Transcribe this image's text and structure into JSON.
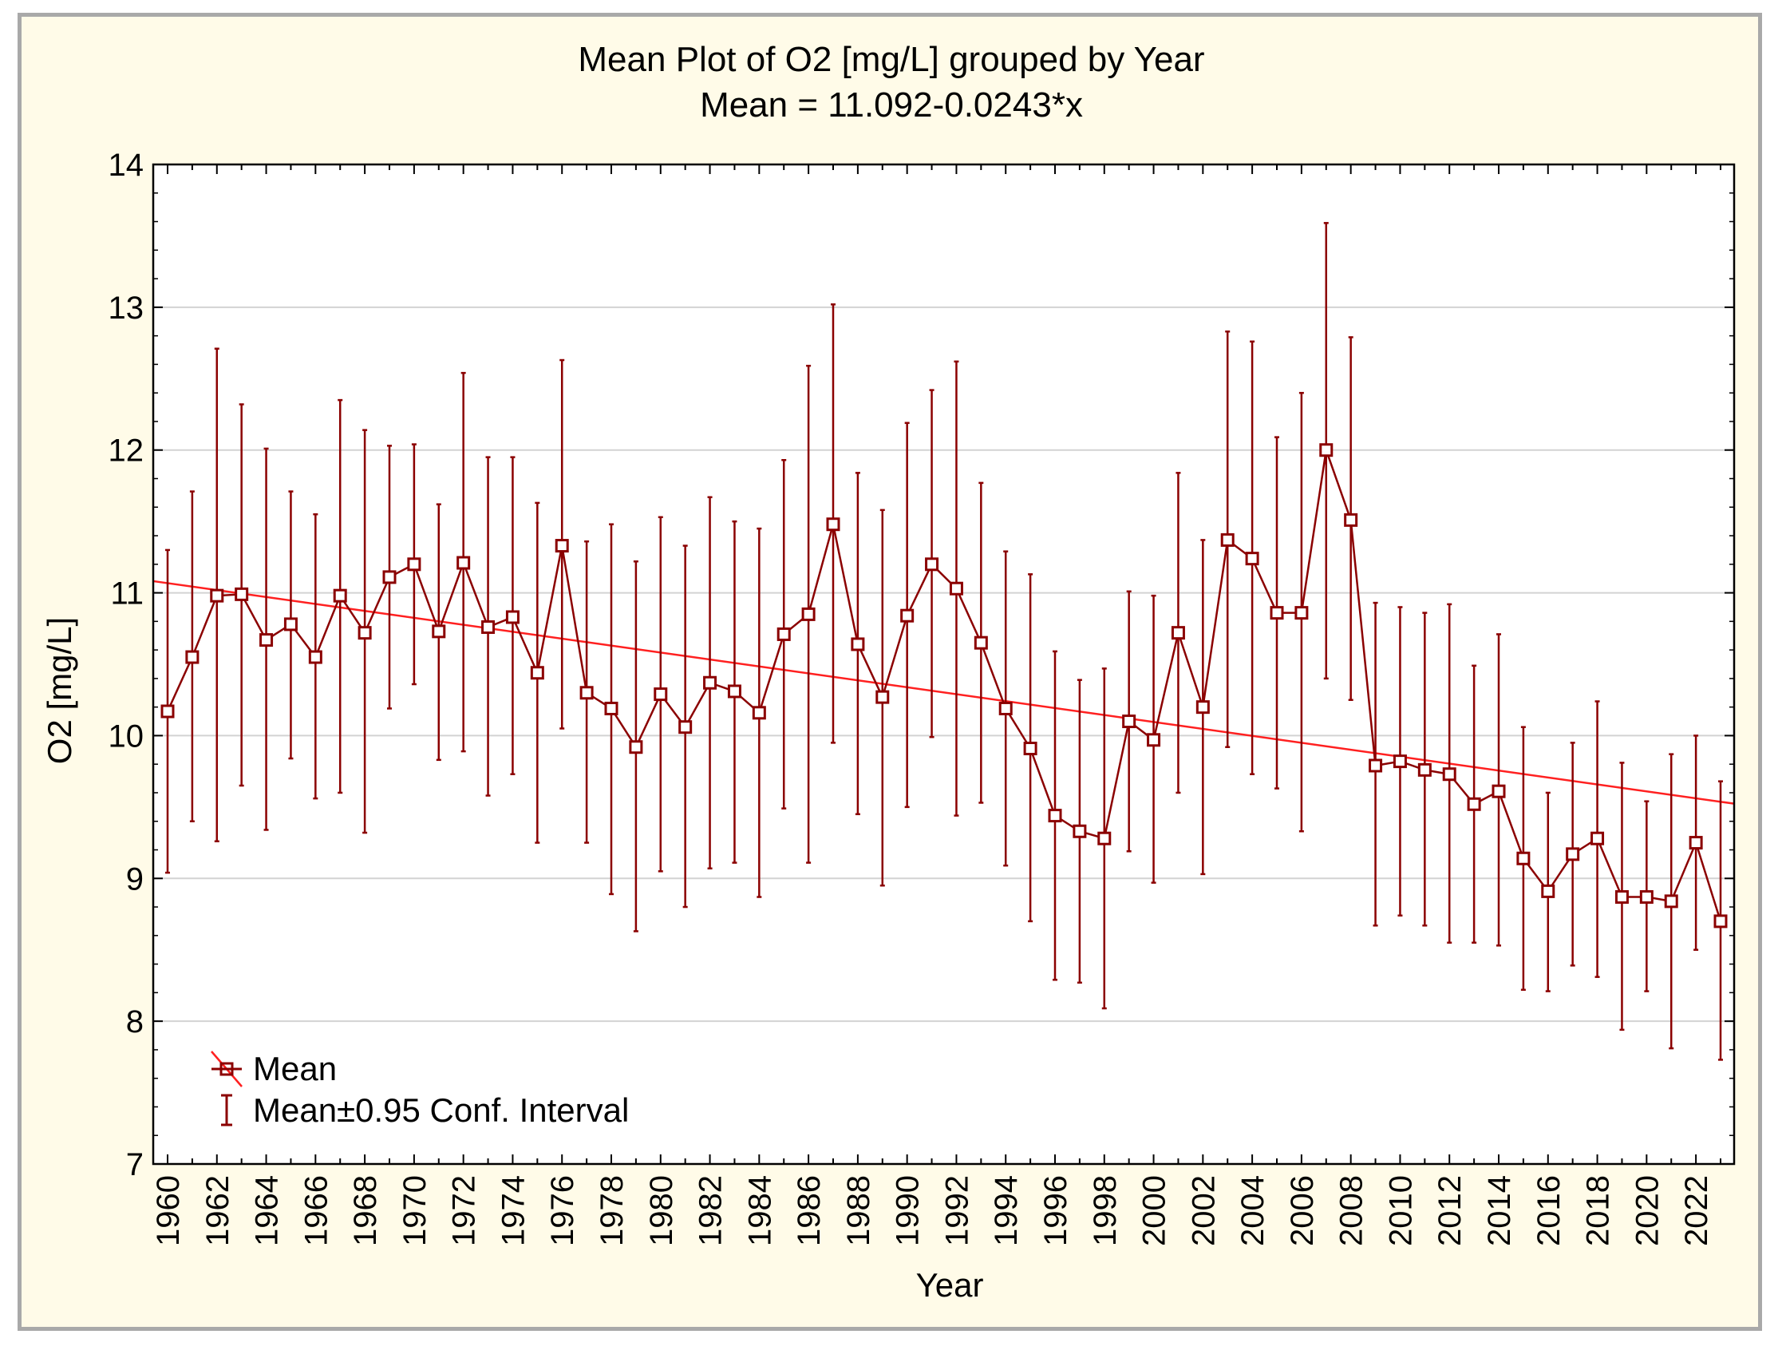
{
  "chart_data": {
    "type": "line",
    "title": "Mean Plot of O2 [mg/L] grouped by  Year",
    "subtitle": "Mean = 11.092-0.0243*x",
    "xlabel": "Year",
    "ylabel": "O2 [mg/L]",
    "ylim": [
      7,
      14
    ],
    "yticks": [
      7,
      8,
      9,
      10,
      11,
      12,
      13,
      14
    ],
    "xticks": [
      "1960",
      "1962",
      "1964",
      "1966",
      "1968",
      "1970",
      "1972",
      "1974",
      "1976",
      "1978",
      "1980",
      "1982",
      "1984",
      "1986",
      "1988",
      "1990",
      "1992",
      "1994",
      "1996",
      "1998",
      "2000",
      "2002",
      "2004",
      "2006",
      "2008",
      "2010",
      "2012",
      "2014",
      "2016",
      "2018",
      "2020",
      "2022"
    ],
    "grid": true,
    "trendline": {
      "intercept": 11.092,
      "slope": -0.0243,
      "color": "#ff2020"
    },
    "colors": {
      "series": "#8b0000",
      "trend": "#ff2020"
    },
    "legend": [
      {
        "label": "Mean",
        "icon": "line-square-marker-icon"
      },
      {
        "label": "Mean±0.95 Conf. Interval",
        "icon": "error-bar-icon"
      }
    ],
    "series": [
      {
        "name": "Mean",
        "x": [
          1960,
          1961,
          1962,
          1963,
          1964,
          1965,
          1966,
          1967,
          1968,
          1969,
          1970,
          1971,
          1972,
          1973,
          1974,
          1975,
          1976,
          1977,
          1978,
          1979,
          1980,
          1981,
          1982,
          1983,
          1984,
          1985,
          1986,
          1987,
          1988,
          1989,
          1990,
          1991,
          1992,
          1993,
          1994,
          1995,
          1996,
          1997,
          1998,
          1999,
          2000,
          2001,
          2002,
          2003,
          2004,
          2005,
          2006,
          2007,
          2008,
          2009,
          2010,
          2011,
          2012,
          2013,
          2014,
          2015,
          2016,
          2017,
          2018,
          2019,
          2020,
          2021,
          2022,
          2023
        ],
        "values": [
          10.17,
          10.55,
          10.98,
          10.99,
          10.67,
          10.78,
          10.55,
          10.98,
          10.72,
          11.11,
          11.2,
          10.73,
          11.21,
          10.76,
          10.83,
          10.44,
          11.33,
          10.3,
          10.19,
          9.92,
          10.29,
          10.06,
          10.37,
          10.31,
          10.16,
          10.71,
          10.85,
          11.48,
          10.64,
          10.27,
          10.84,
          11.2,
          11.03,
          10.65,
          10.19,
          9.91,
          9.44,
          9.33,
          9.28,
          10.1,
          9.97,
          10.72,
          10.2,
          11.37,
          11.24,
          10.86,
          10.86,
          12.0,
          11.51,
          9.79,
          9.82,
          9.76,
          9.73,
          9.52,
          9.61,
          9.14,
          8.91,
          9.17,
          9.28,
          8.87,
          8.87,
          8.84,
          9.25,
          8.7
        ],
        "ci_lower": [
          9.04,
          9.4,
          9.26,
          9.65,
          9.34,
          9.84,
          9.56,
          9.6,
          9.32,
          10.19,
          10.36,
          9.83,
          9.89,
          9.58,
          9.73,
          9.25,
          10.05,
          9.25,
          8.89,
          8.63,
          9.05,
          8.8,
          9.07,
          9.11,
          8.87,
          9.49,
          9.11,
          9.95,
          9.45,
          8.95,
          9.5,
          9.99,
          9.44,
          9.53,
          9.09,
          8.7,
          8.29,
          8.27,
          8.09,
          9.19,
          8.97,
          9.6,
          9.03,
          9.92,
          9.73,
          9.63,
          9.33,
          10.4,
          10.25,
          8.67,
          8.74,
          8.67,
          8.55,
          8.55,
          8.53,
          8.22,
          8.21,
          8.39,
          8.31,
          7.94,
          8.21,
          7.81,
          8.5,
          7.73
        ],
        "ci_upper": [
          11.3,
          11.71,
          12.71,
          12.32,
          12.01,
          11.71,
          11.55,
          12.35,
          12.14,
          12.03,
          12.04,
          11.62,
          12.54,
          11.95,
          11.95,
          11.63,
          12.63,
          11.36,
          11.48,
          11.22,
          11.53,
          11.33,
          11.67,
          11.5,
          11.45,
          11.93,
          12.59,
          13.02,
          11.84,
          11.58,
          12.19,
          12.42,
          12.62,
          11.77,
          11.29,
          11.13,
          10.59,
          10.39,
          10.47,
          11.01,
          10.98,
          11.84,
          11.37,
          12.83,
          12.76,
          12.09,
          12.4,
          13.59,
          12.79,
          10.93,
          10.9,
          10.86,
          10.92,
          10.49,
          10.71,
          10.06,
          9.6,
          9.95,
          10.24,
          9.81,
          9.54,
          9.87,
          10.0,
          9.68
        ]
      }
    ]
  }
}
